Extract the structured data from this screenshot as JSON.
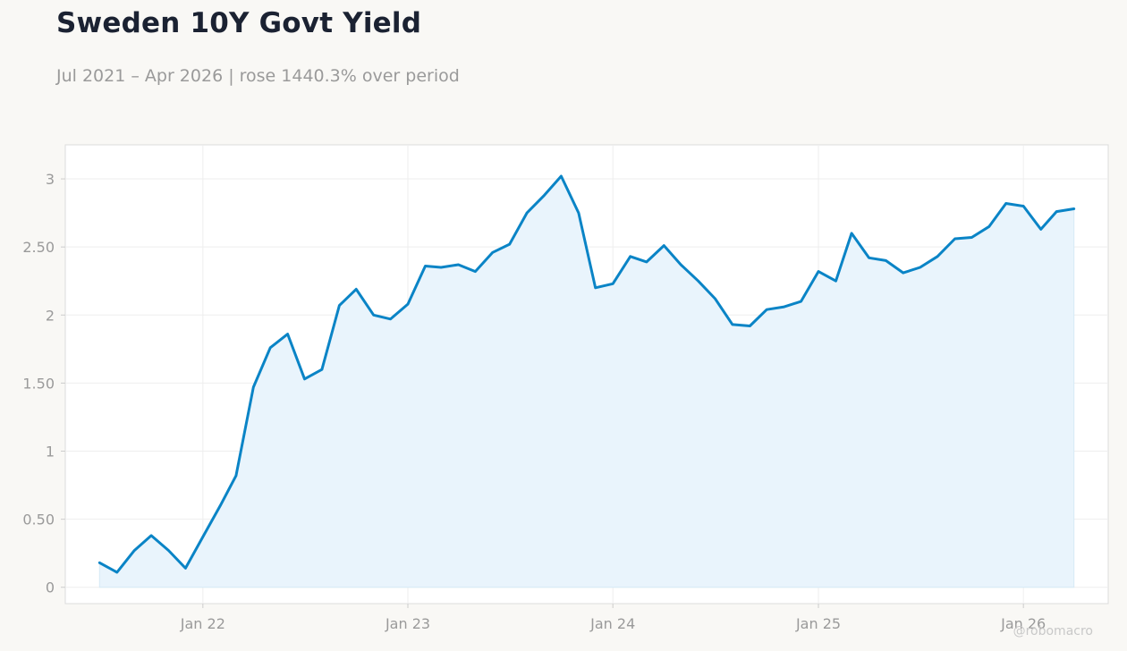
{
  "header": {
    "title": "Sweden 10Y Govt Yield",
    "subtitle": "Jul 2021 – Apr 2026 | rose 1440.3% over period"
  },
  "watermark": "@robomacro",
  "colors": {
    "line": "#0a84c6",
    "area": "#e9f4fc",
    "plot_bg": "#ffffff",
    "plot_border": "#dcdcdc",
    "grid": "#eeeeee",
    "page_bg": "#f9f8f5"
  },
  "chart_data": {
    "type": "area",
    "xlabel": "",
    "ylabel": "",
    "grid": true,
    "legend": "none",
    "xlim": [
      "2021-05-01",
      "2026-06-01"
    ],
    "ylim": [
      -0.12,
      3.25
    ],
    "x_ticks": [
      {
        "date": "2022-01-01",
        "label": "Jan 22"
      },
      {
        "date": "2023-01-01",
        "label": "Jan 23"
      },
      {
        "date": "2024-01-01",
        "label": "Jan 24"
      },
      {
        "date": "2025-01-01",
        "label": "Jan 25"
      },
      {
        "date": "2026-01-01",
        "label": "Jan 26"
      }
    ],
    "y_ticks": [
      {
        "value": 0,
        "label": "0"
      },
      {
        "value": 0.5,
        "label": "0.50"
      },
      {
        "value": 1,
        "label": "1"
      },
      {
        "value": 1.5,
        "label": "1.50"
      },
      {
        "value": 2,
        "label": "2"
      },
      {
        "value": 2.5,
        "label": "2.50"
      },
      {
        "value": 3,
        "label": "3"
      }
    ],
    "series": [
      {
        "x": [
          "2021-07-01",
          "2021-08-01",
          "2021-09-01",
          "2021-10-01",
          "2021-11-01",
          "2021-12-01",
          "2022-01-01",
          "2022-02-01",
          "2022-03-01",
          "2022-04-01",
          "2022-05-01",
          "2022-06-01",
          "2022-07-01",
          "2022-08-01",
          "2022-09-01",
          "2022-10-01",
          "2022-11-01",
          "2022-12-01",
          "2023-01-01",
          "2023-02-01",
          "2023-03-01",
          "2023-04-01",
          "2023-05-01",
          "2023-06-01",
          "2023-07-01",
          "2023-08-01",
          "2023-09-01",
          "2023-10-01",
          "2023-11-01",
          "2023-12-01",
          "2024-01-01",
          "2024-02-01",
          "2024-03-01",
          "2024-04-01",
          "2024-05-01",
          "2024-06-01",
          "2024-07-01",
          "2024-08-01",
          "2024-09-01",
          "2024-10-01",
          "2024-11-01",
          "2024-12-01",
          "2025-01-01",
          "2025-02-01",
          "2025-03-01",
          "2025-04-01",
          "2025-05-01",
          "2025-06-01",
          "2025-07-01",
          "2025-08-01",
          "2025-09-01",
          "2025-10-01",
          "2025-11-01",
          "2025-12-01",
          "2026-01-01",
          "2026-02-01",
          "2026-03-01",
          "2026-04-01"
        ],
        "values": [
          0.18,
          0.11,
          0.27,
          0.38,
          0.27,
          0.14,
          0.37,
          0.6,
          0.82,
          1.47,
          1.76,
          1.86,
          1.53,
          1.6,
          2.07,
          2.19,
          2.0,
          1.97,
          2.08,
          2.36,
          2.35,
          2.37,
          2.32,
          2.46,
          2.52,
          2.75,
          2.88,
          3.02,
          2.75,
          2.2,
          2.23,
          2.43,
          2.39,
          2.51,
          2.37,
          2.25,
          2.12,
          1.93,
          1.92,
          2.04,
          2.06,
          2.1,
          2.32,
          2.25,
          2.6,
          2.42,
          2.4,
          2.31,
          2.35,
          2.43,
          2.56,
          2.57,
          2.65,
          2.82,
          2.8,
          2.63,
          2.76,
          2.78
        ]
      }
    ]
  }
}
